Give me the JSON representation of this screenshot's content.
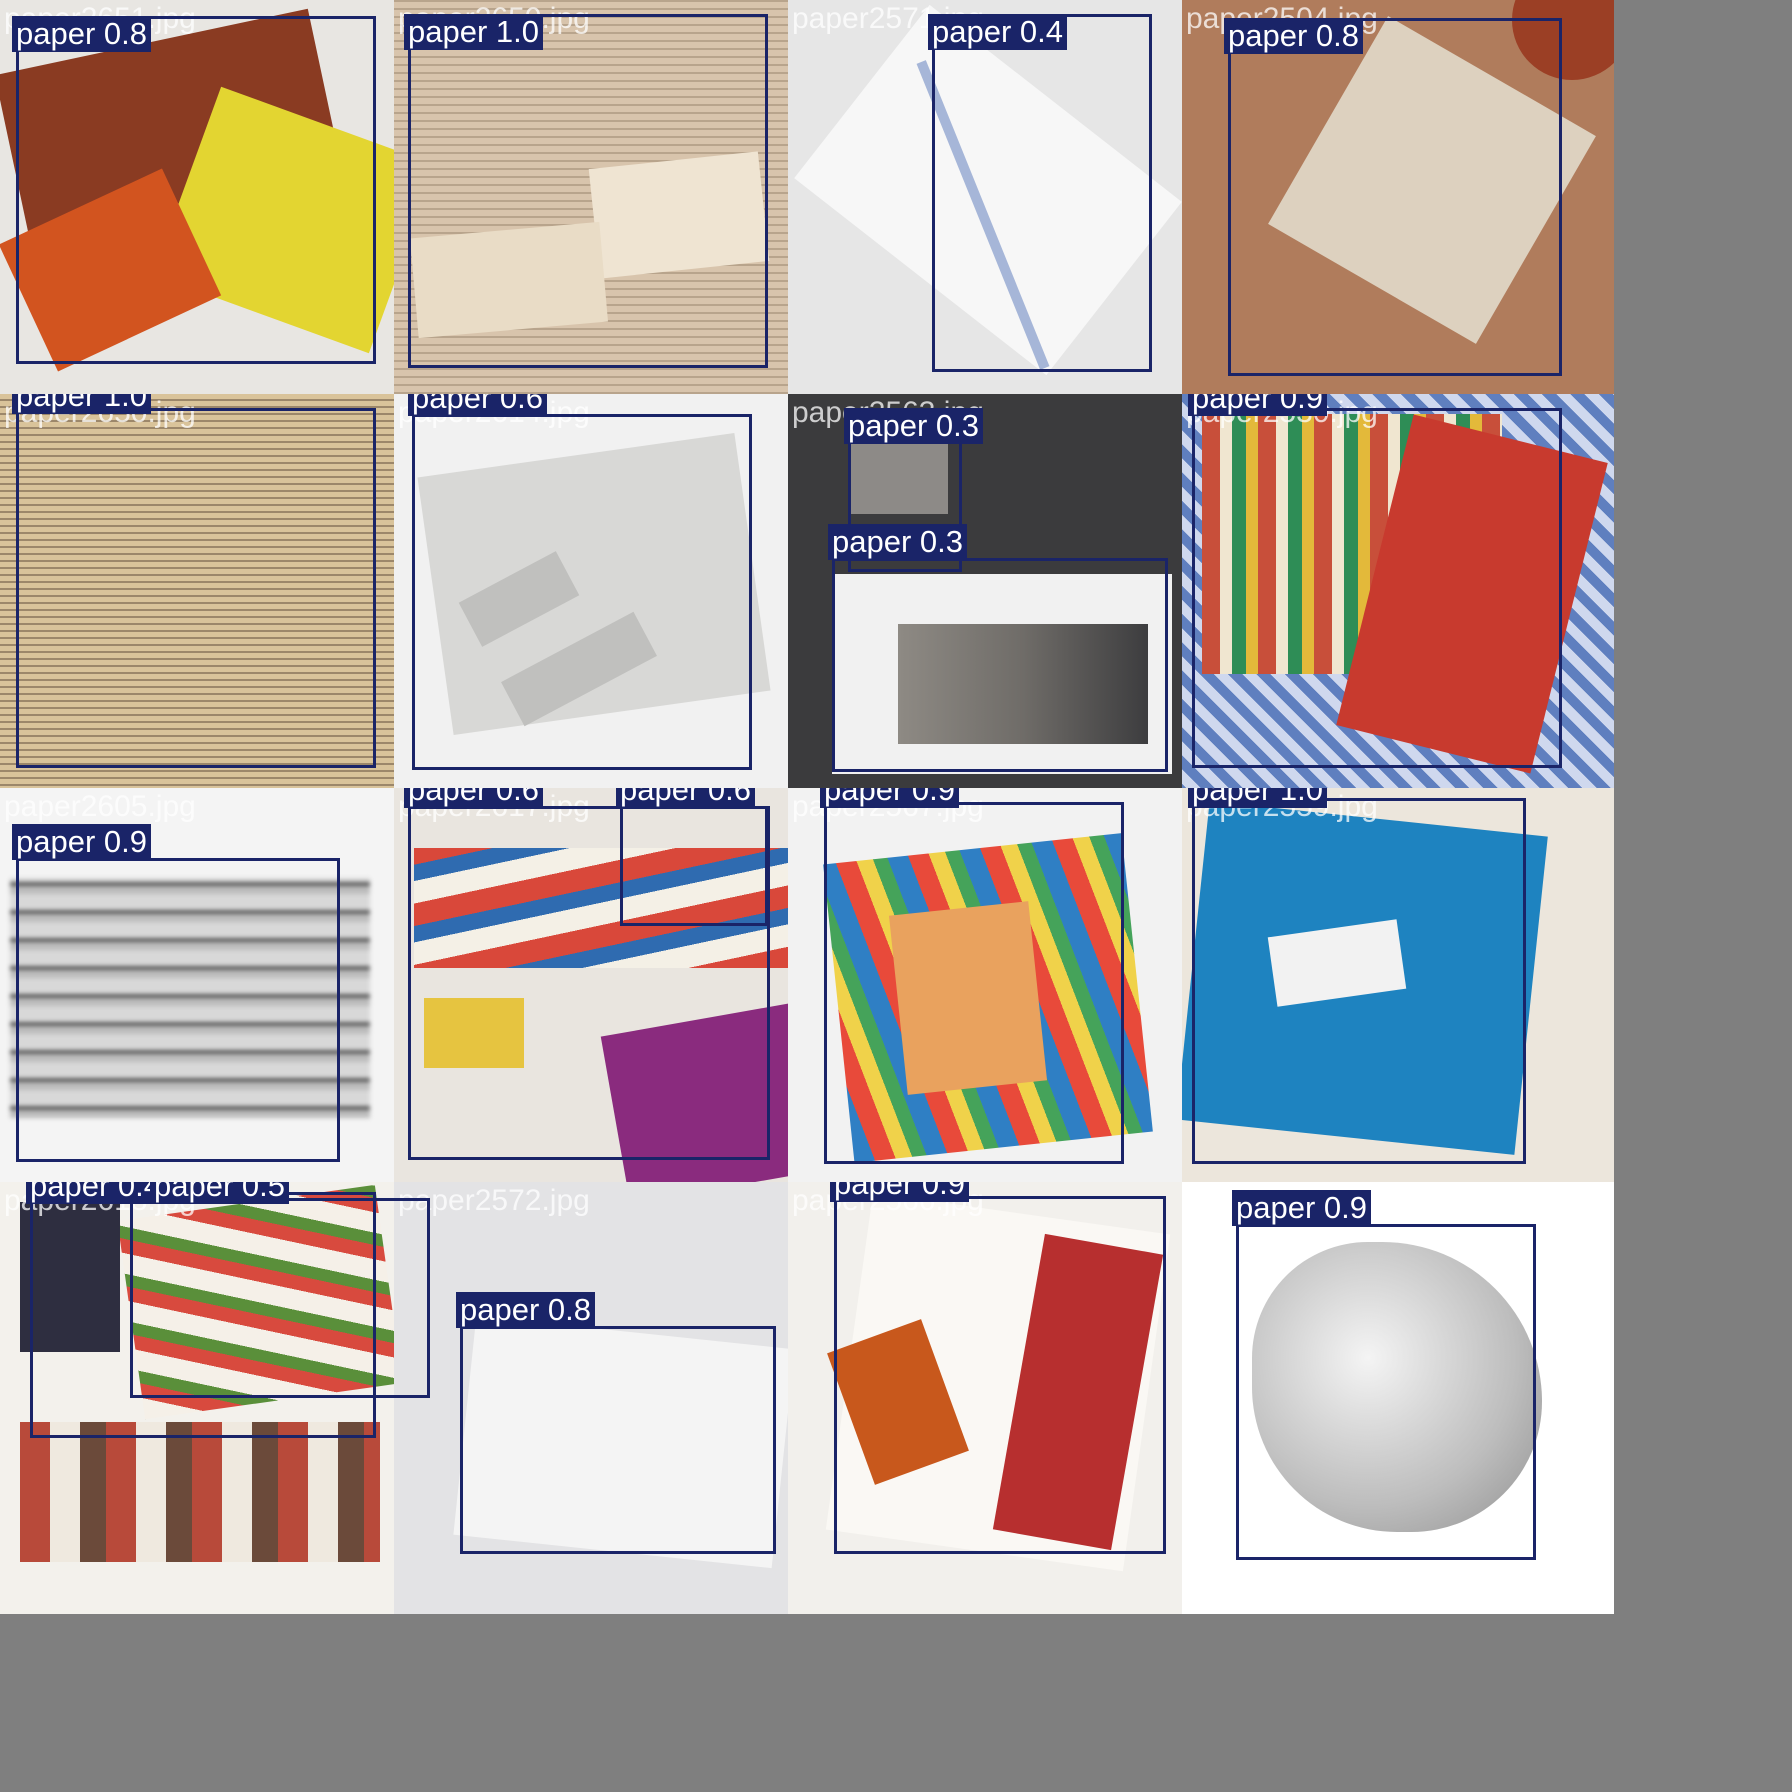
{
  "grid_title": "",
  "tiles": [
    {
      "file": "paper2651.jpg",
      "boxes": [
        {
          "label": "paper 0.8"
        }
      ]
    },
    {
      "file": "paper2650.jpg",
      "boxes": [
        {
          "label": "paper 1.0"
        }
      ]
    },
    {
      "file": "paper2571.jpg",
      "boxes": [
        {
          "label": "paper 0.4"
        }
      ]
    },
    {
      "file": "paper2504.jpg",
      "boxes": [
        {
          "label": "paper 0.8"
        }
      ]
    },
    {
      "file": "paper2650.jpg",
      "boxes": [
        {
          "label": "paper 1.0"
        }
      ]
    },
    {
      "file": "paper2614.jpg",
      "boxes": [
        {
          "label": "paper 0.6"
        }
      ]
    },
    {
      "file": "paper2563.jpg",
      "boxes": [
        {
          "label": "paper 0.3"
        },
        {
          "label": "paper 0.3"
        }
      ]
    },
    {
      "file": "paper2530.jpg",
      "boxes": [
        {
          "label": "paper 0.9"
        }
      ]
    },
    {
      "file": "paper2605.jpg",
      "boxes": [
        {
          "label": "paper 0.9"
        }
      ]
    },
    {
      "file": "paper2617.jpg",
      "boxes": [
        {
          "label": "paper 0.6"
        },
        {
          "label": "paper 0.6"
        }
      ]
    },
    {
      "file": "paper2567.jpg",
      "boxes": [
        {
          "label": "paper 0.9"
        }
      ]
    },
    {
      "file": "paper2559.jpg",
      "boxes": [
        {
          "label": "paper 1.0"
        }
      ]
    },
    {
      "file": "paper2618.jpg",
      "boxes": [
        {
          "label": "paper 0.4"
        },
        {
          "label": "paper 0.5"
        }
      ]
    },
    {
      "file": "paper2572.jpg",
      "boxes": [
        {
          "label": "paper 0.8"
        }
      ]
    },
    {
      "file": "paper2566.jpg",
      "boxes": [
        {
          "label": "paper 0.9"
        }
      ]
    },
    {
      "file": "paper2532.jpg",
      "boxes": [
        {
          "label": "paper 0.9"
        }
      ]
    }
  ],
  "colors": {
    "box": "#1a2468",
    "background": "#7f7f7f",
    "label_text": "#ffffff"
  }
}
